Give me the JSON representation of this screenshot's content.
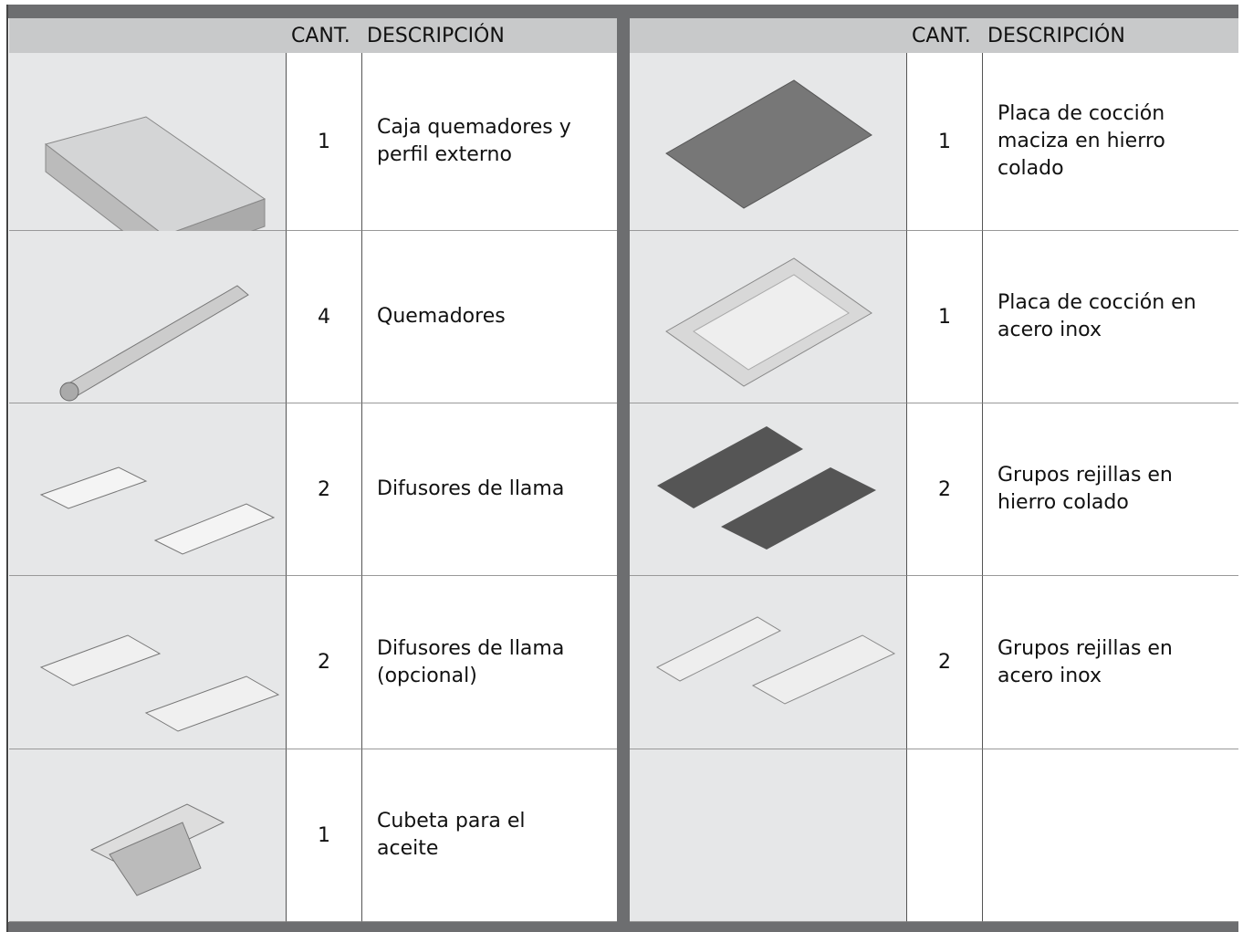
{
  "left": {
    "header": {
      "quantity": "CANT.",
      "description": "DESCRIPCIÓN"
    },
    "rows": [
      {
        "quantity": 1,
        "description": "Caja quemadores y perfil externo"
      },
      {
        "quantity": 4,
        "description": "Quemadores"
      },
      {
        "quantity": 2,
        "description": "Difusores de llama"
      },
      {
        "quantity": 2,
        "description": "Difusores de llama (opcional)"
      },
      {
        "quantity": 1,
        "description": "Cubeta para el aceite"
      }
    ]
  },
  "right": {
    "header": {
      "quantity": "CANT.",
      "description": "DESCRIPCIÓN"
    },
    "rows": [
      {
        "quantity": 1,
        "description": "Placa de cocción maciza en hierro colado"
      },
      {
        "quantity": 1,
        "description": "Placa de cocción en acero inox"
      },
      {
        "quantity": 2,
        "description": "Grupos rejillas en hierro colado"
      },
      {
        "quantity": 2,
        "description": "Grupos rejillas en acero inox"
      }
    ]
  }
}
